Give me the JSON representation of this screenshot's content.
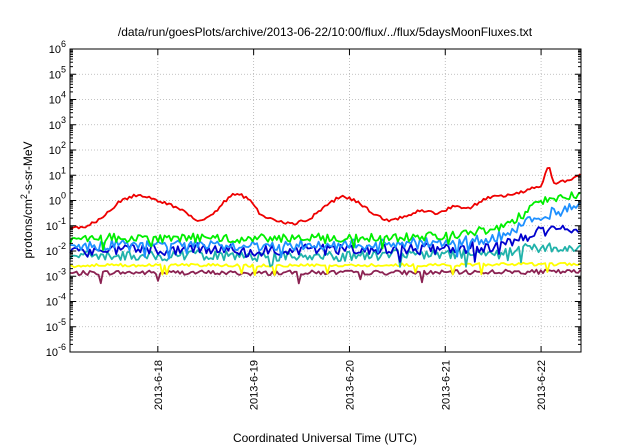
{
  "chart_data": {
    "type": "line",
    "title": "/data/run/goesPlots/archive/2013-06-22/10:00/flux/../flux/5daysMoonFluxes.txt",
    "xlabel": "Coordinated Universal Time (UTC)",
    "ylabel": {
      "pre": "protons/cm",
      "sup": "2",
      "post": "-s-sr-MeV"
    },
    "yscale": "log",
    "ylim_exp": [
      -6,
      6
    ],
    "y_ticks": [
      {
        "base": "10",
        "exp": "-6"
      },
      {
        "base": "10",
        "exp": "-5"
      },
      {
        "base": "10",
        "exp": "-4"
      },
      {
        "base": "10",
        "exp": "-3"
      },
      {
        "base": "10",
        "exp": "-2"
      },
      {
        "base": "10",
        "exp": "-1"
      },
      {
        "base": "10",
        "exp": "0"
      },
      {
        "base": "10",
        "exp": "1"
      },
      {
        "base": "10",
        "exp": "2"
      },
      {
        "base": "10",
        "exp": "3"
      },
      {
        "base": "10",
        "exp": "4"
      },
      {
        "base": "10",
        "exp": "5"
      },
      {
        "base": "10",
        "exp": "6"
      }
    ],
    "xlim": [
      "2013-06-17 02:00",
      "2013-06-22 10:00"
    ],
    "x_ticks": [
      {
        "date": "2013-06-18 00:00",
        "label": "2013-6-18"
      },
      {
        "date": "2013-06-19 00:00",
        "label": "2013-6-19"
      },
      {
        "date": "2013-06-20 00:00",
        "label": "2013-6-20"
      },
      {
        "date": "2013-06-21 00:00",
        "label": "2013-6-21"
      },
      {
        "date": "2013-06-22 00:00",
        "label": "2013-6-22"
      }
    ],
    "grid": true,
    "legend": "none",
    "series": [
      {
        "color": "#8b2252",
        "points": [
          [
            "2013-06-17 02:00",
            0.0013
          ],
          [
            "2013-06-17 12:00",
            0.0014
          ],
          [
            "2013-06-18 00:00",
            0.0014
          ],
          [
            "2013-06-18 12:00",
            0.0014
          ],
          [
            "2013-06-19 00:00",
            0.0013
          ],
          [
            "2013-06-19 12:00",
            0.0014
          ],
          [
            "2013-06-20 00:00",
            0.0014
          ],
          [
            "2013-06-20 12:00",
            0.0014
          ],
          [
            "2013-06-21 00:00",
            0.0014
          ],
          [
            "2013-06-21 12:00",
            0.0015
          ],
          [
            "2013-06-22 00:00",
            0.0015
          ],
          [
            "2013-06-22 10:00",
            0.0015
          ]
        ]
      },
      {
        "color": "#ffff00",
        "points": [
          [
            "2013-06-17 02:00",
            0.0025
          ],
          [
            "2013-06-17 12:00",
            0.0028
          ],
          [
            "2013-06-18 00:00",
            0.0027
          ],
          [
            "2013-06-18 12:00",
            0.0028
          ],
          [
            "2013-06-19 00:00",
            0.0026
          ],
          [
            "2013-06-19 12:00",
            0.0028
          ],
          [
            "2013-06-20 00:00",
            0.0027
          ],
          [
            "2013-06-20 12:00",
            0.0028
          ],
          [
            "2013-06-21 00:00",
            0.0028
          ],
          [
            "2013-06-21 12:00",
            0.003
          ],
          [
            "2013-06-22 00:00",
            0.003
          ],
          [
            "2013-06-22 10:00",
            0.003
          ]
        ]
      },
      {
        "color": "#20b2aa",
        "points": [
          [
            "2013-06-17 02:00",
            0.006
          ],
          [
            "2013-06-17 12:00",
            0.007
          ],
          [
            "2013-06-18 00:00",
            0.006
          ],
          [
            "2013-06-18 12:00",
            0.007
          ],
          [
            "2013-06-19 00:00",
            0.006
          ],
          [
            "2013-06-19 12:00",
            0.007
          ],
          [
            "2013-06-20 00:00",
            0.006
          ],
          [
            "2013-06-20 12:00",
            0.007
          ],
          [
            "2013-06-21 00:00",
            0.007
          ],
          [
            "2013-06-21 12:00",
            0.008
          ],
          [
            "2013-06-21 20:00",
            0.013
          ],
          [
            "2013-06-22 00:00",
            0.014
          ],
          [
            "2013-06-22 10:00",
            0.011
          ]
        ]
      },
      {
        "color": "#0000cd",
        "points": [
          [
            "2013-06-17 02:00",
            0.008
          ],
          [
            "2013-06-17 12:00",
            0.012
          ],
          [
            "2013-06-18 00:00",
            0.011
          ],
          [
            "2013-06-18 12:00",
            0.013
          ],
          [
            "2013-06-19 00:00",
            0.01
          ],
          [
            "2013-06-19 12:00",
            0.012
          ],
          [
            "2013-06-20 00:00",
            0.011
          ],
          [
            "2013-06-20 12:00",
            0.012
          ],
          [
            "2013-06-21 00:00",
            0.012
          ],
          [
            "2013-06-21 12:00",
            0.015
          ],
          [
            "2013-06-21 20:00",
            0.035
          ],
          [
            "2013-06-22 00:00",
            0.06
          ],
          [
            "2013-06-22 10:00",
            0.09
          ]
        ]
      },
      {
        "color": "#1e90ff",
        "points": [
          [
            "2013-06-17 02:00",
            0.012
          ],
          [
            "2013-06-17 12:00",
            0.018
          ],
          [
            "2013-06-18 00:00",
            0.016
          ],
          [
            "2013-06-18 12:00",
            0.02
          ],
          [
            "2013-06-19 00:00",
            0.015
          ],
          [
            "2013-06-19 12:00",
            0.018
          ],
          [
            "2013-06-20 00:00",
            0.017
          ],
          [
            "2013-06-20 12:00",
            0.02
          ],
          [
            "2013-06-21 00:00",
            0.02
          ],
          [
            "2013-06-21 12:00",
            0.03
          ],
          [
            "2013-06-21 20:00",
            0.12
          ],
          [
            "2013-06-22 00:00",
            0.25
          ],
          [
            "2013-06-22 10:00",
            0.6
          ]
        ]
      },
      {
        "color": "#00ee00",
        "points": [
          [
            "2013-06-17 02:00",
            0.025
          ],
          [
            "2013-06-17 12:00",
            0.035
          ],
          [
            "2013-06-18 00:00",
            0.03
          ],
          [
            "2013-06-18 12:00",
            0.035
          ],
          [
            "2013-06-19 00:00",
            0.03
          ],
          [
            "2013-06-19 12:00",
            0.035
          ],
          [
            "2013-06-20 00:00",
            0.032
          ],
          [
            "2013-06-20 12:00",
            0.035
          ],
          [
            "2013-06-21 00:00",
            0.04
          ],
          [
            "2013-06-21 12:00",
            0.07
          ],
          [
            "2013-06-21 20:00",
            0.3
          ],
          [
            "2013-06-22 00:00",
            0.9
          ],
          [
            "2013-06-22 10:00",
            2
          ]
        ]
      },
      {
        "color": "#ee0000",
        "points": [
          [
            "2013-06-17 02:00",
            0.08
          ],
          [
            "2013-06-17 06:00",
            0.09
          ],
          [
            "2013-06-17 10:00",
            0.2
          ],
          [
            "2013-06-17 14:00",
            0.8
          ],
          [
            "2013-06-17 18:00",
            1.6
          ],
          [
            "2013-06-17 22:00",
            1.3
          ],
          [
            "2013-06-18 02:00",
            0.8
          ],
          [
            "2013-06-18 06:00",
            0.4
          ],
          [
            "2013-06-18 10:00",
            0.15
          ],
          [
            "2013-06-18 14:00",
            0.3
          ],
          [
            "2013-06-18 18:00",
            1.5
          ],
          [
            "2013-06-18 20:00",
            2
          ],
          [
            "2013-06-18 23:00",
            1
          ],
          [
            "2013-06-19 02:00",
            0.25
          ],
          [
            "2013-06-19 06:00",
            0.15
          ],
          [
            "2013-06-19 10:00",
            0.12
          ],
          [
            "2013-06-19 14:00",
            0.18
          ],
          [
            "2013-06-19 18:00",
            0.6
          ],
          [
            "2013-06-19 22:00",
            1.6
          ],
          [
            "2013-06-20 02:00",
            0.9
          ],
          [
            "2013-06-20 06:00",
            0.3
          ],
          [
            "2013-06-20 10:00",
            0.15
          ],
          [
            "2013-06-20 14:00",
            0.25
          ],
          [
            "2013-06-20 18:00",
            0.4
          ],
          [
            "2013-06-20 22:00",
            0.3
          ],
          [
            "2013-06-21 02:00",
            0.6
          ],
          [
            "2013-06-21 06:00",
            0.5
          ],
          [
            "2013-06-21 10:00",
            1.2
          ],
          [
            "2013-06-21 14:00",
            1.5
          ],
          [
            "2013-06-21 18:00",
            2
          ],
          [
            "2013-06-21 22:00",
            3
          ],
          [
            "2013-06-22 00:00",
            4
          ],
          [
            "2013-06-22 02:00",
            25
          ],
          [
            "2013-06-22 03:00",
            5
          ],
          [
            "2013-06-22 06:00",
            6
          ],
          [
            "2013-06-22 10:00",
            10
          ]
        ]
      }
    ]
  }
}
